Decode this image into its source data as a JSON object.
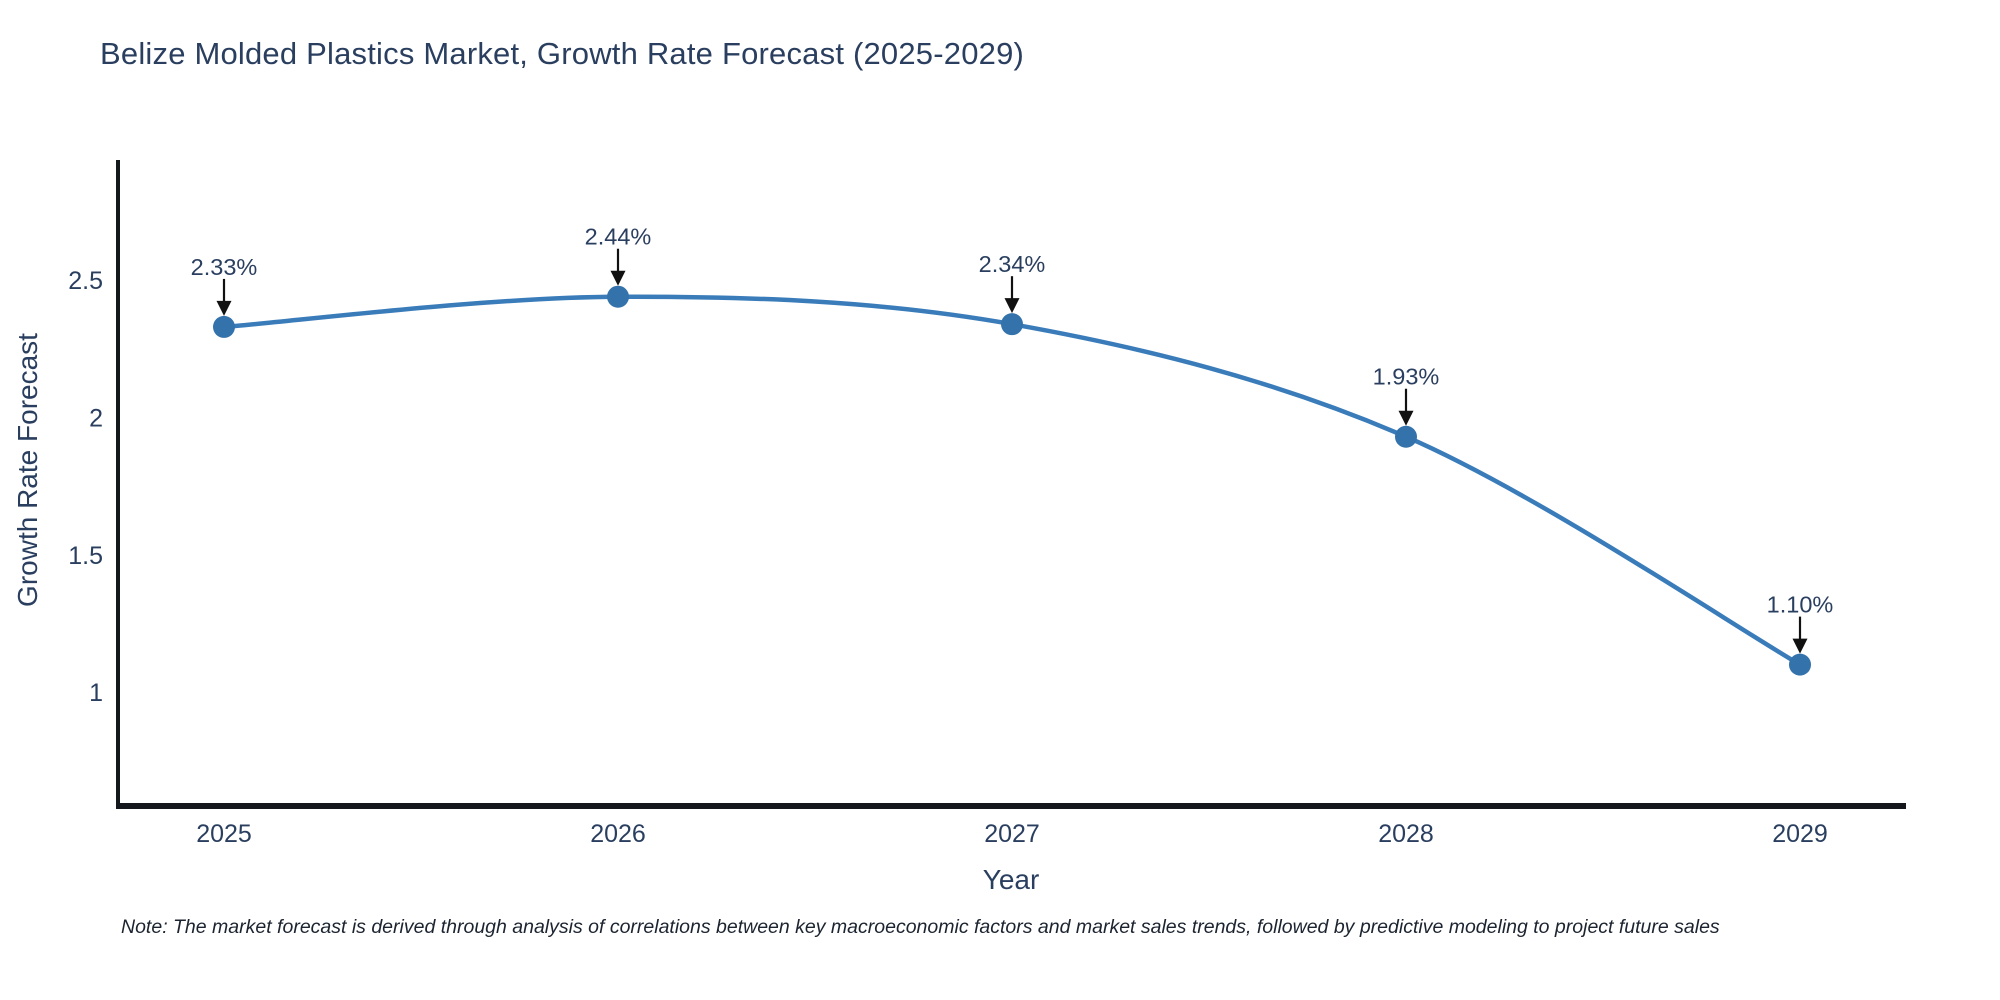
{
  "page": {
    "background": "#ffffff"
  },
  "chart_data": {
    "type": "line",
    "title": "Belize Molded Plastics Market, Growth Rate Forecast (2025-2029)",
    "xlabel": "Year",
    "ylabel": "Growth Rate Forecast",
    "x": [
      2025,
      2026,
      2027,
      2028,
      2029
    ],
    "values": [
      2.33,
      2.44,
      2.34,
      1.93,
      1.1
    ],
    "data_labels": [
      "2.33%",
      "2.44%",
      "2.34%",
      "1.93%",
      "1.10%"
    ],
    "yticks": [
      1,
      1.5,
      2,
      2.5
    ],
    "ytick_labels": [
      "1",
      "1.5",
      "2",
      "2.5"
    ],
    "ylim": [
      0.585,
      2.938
    ],
    "grid": "off",
    "legend": "none",
    "line_color": "#3a7cba",
    "marker_color": "#3372ab",
    "axis_color": "#14181c",
    "tick_color": "#2a3f5f",
    "annotation_text_color": "#2a3f5f",
    "annotation_arrow_color": "#111111",
    "note": "Note: The market forecast is derived through analysis of correlations between key macroeconomic factors and market sales trends, followed by predictive modeling to project future sales"
  }
}
